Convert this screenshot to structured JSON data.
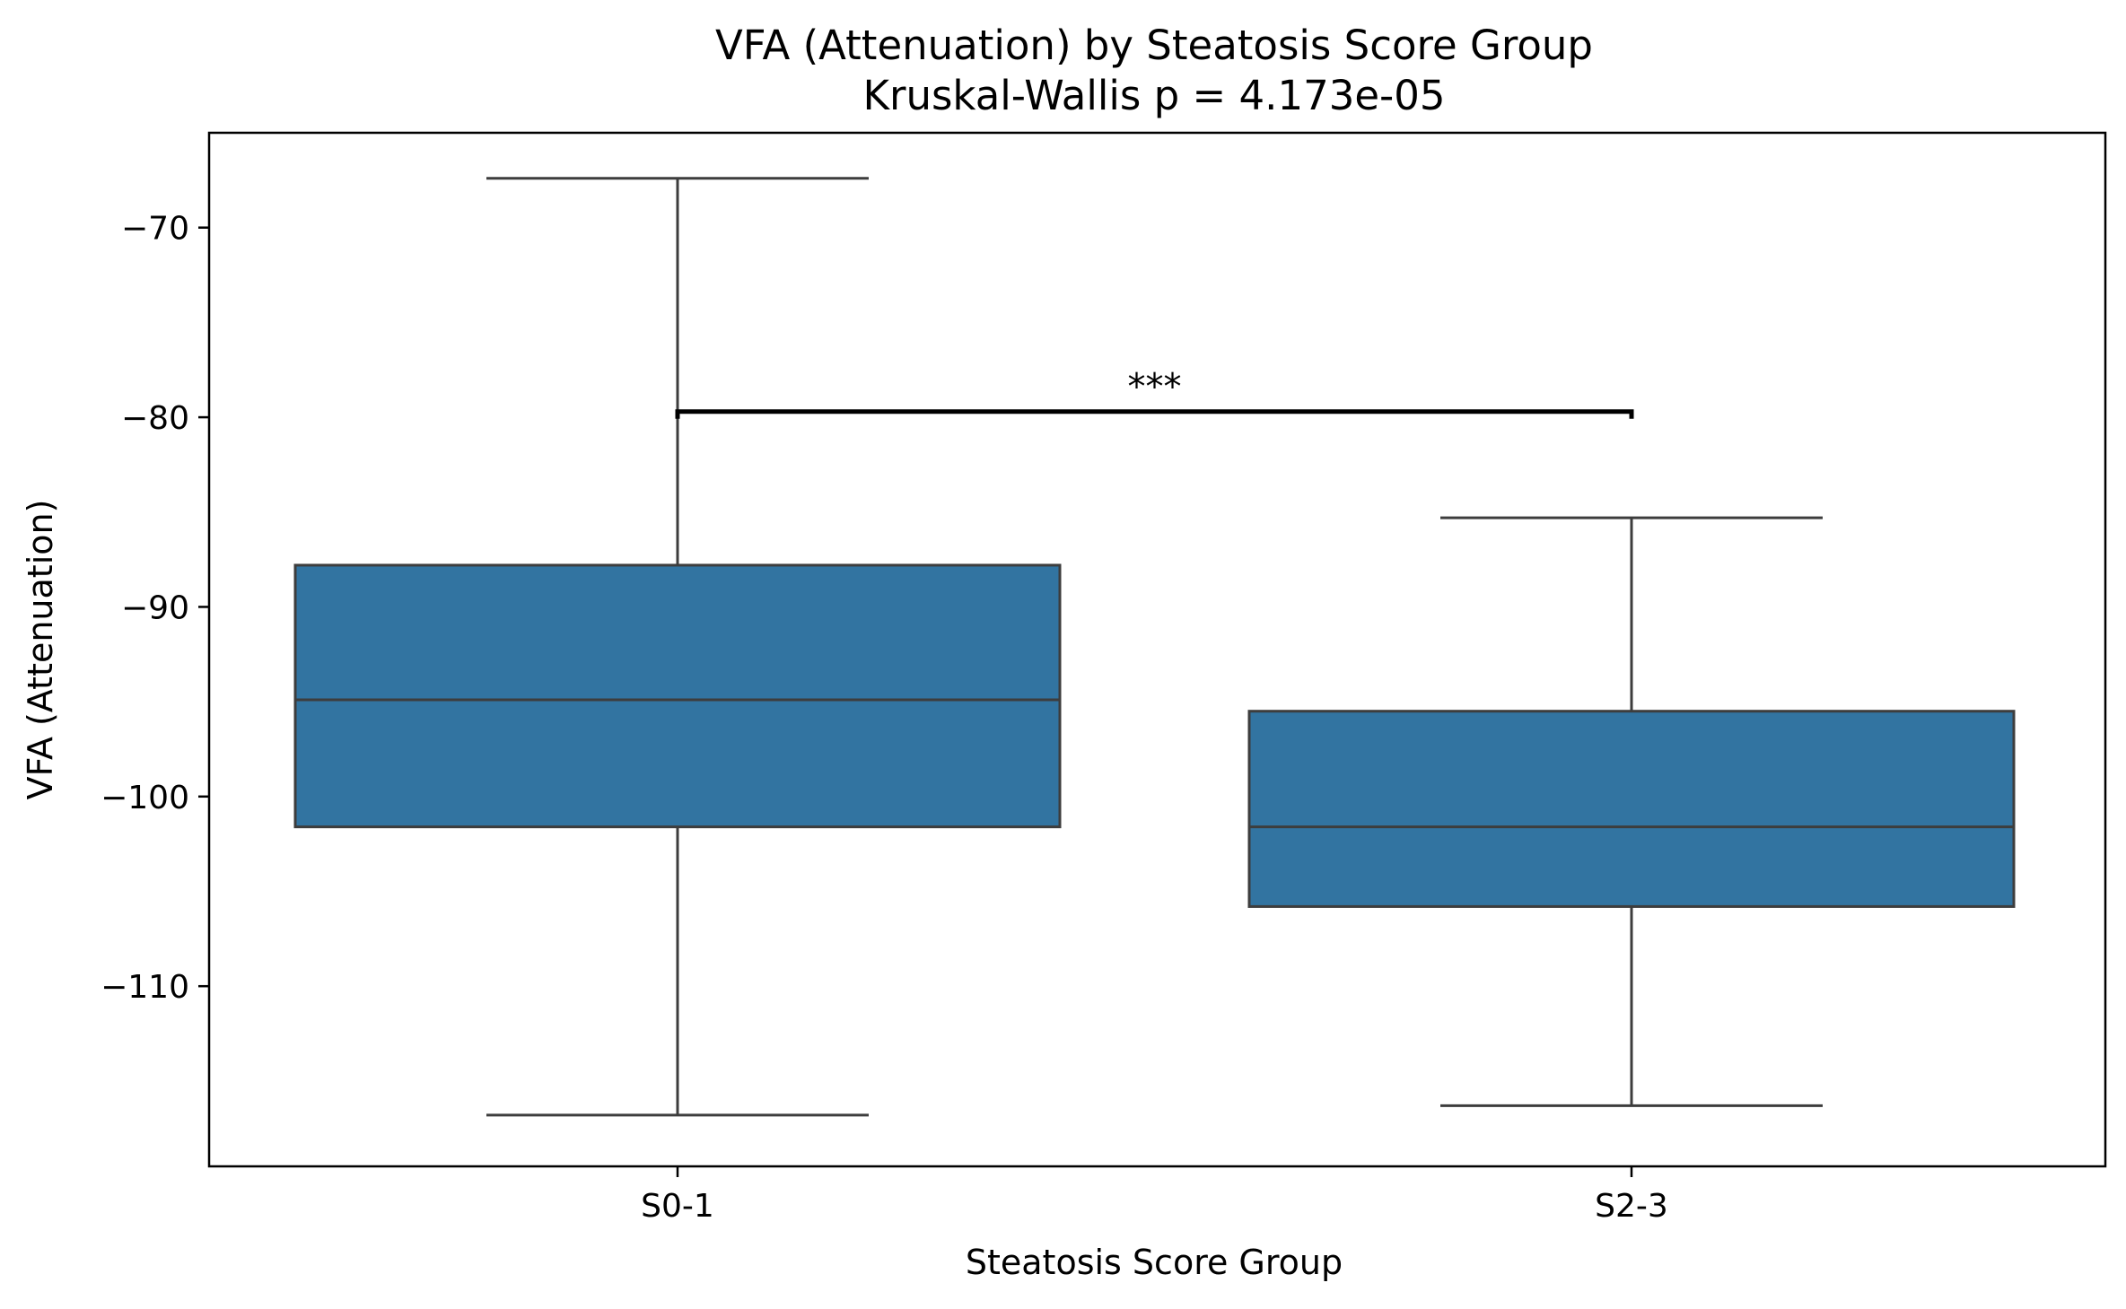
{
  "chart_data": {
    "type": "box",
    "title": "VFA (Attenuation) by Steatosis Score Group",
    "subtitle": "Kruskal-Wallis p = 4.173e-05",
    "xlabel": "Steatosis Score Group",
    "ylabel": "VFA (Attenuation)",
    "ylim": [
      -119.5,
      -65.0
    ],
    "yticks": [
      -110,
      -100,
      -90,
      -80,
      -70
    ],
    "ytick_labels": [
      "−110",
      "−100",
      "−90",
      "−80",
      "−70"
    ],
    "categories": [
      "S0-1",
      "S2-3"
    ],
    "boxes": [
      {
        "category": "S0-1",
        "whisker_low": -116.8,
        "q1": -101.6,
        "median": -94.9,
        "q3": -87.8,
        "whisker_high": -67.4
      },
      {
        "category": "S2-3",
        "whisker_low": -116.3,
        "q1": -105.8,
        "median": -101.6,
        "q3": -95.5,
        "whisker_high": -85.3
      }
    ],
    "significance": {
      "from": "S0-1",
      "to": "S2-3",
      "label": "***",
      "y": -79.7
    },
    "box_color": "#3274a1",
    "line_color": "#3d3d3d",
    "grid": false,
    "legend": "none"
  }
}
